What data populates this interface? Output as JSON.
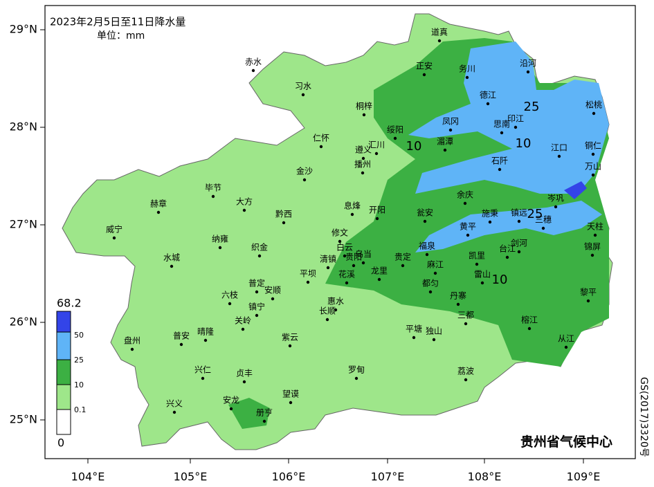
{
  "title": "2023年2月5日至11日降水量",
  "unit": "单位：mm",
  "lat_labels": [
    "29°N",
    "28°N",
    "27°N",
    "26°N",
    "25°N"
  ],
  "lon_labels": [
    "104°E",
    "105°E",
    "106°E",
    "107°E",
    "108°E",
    "109°E"
  ],
  "legend": {
    "max": "68.2",
    "levels": [
      "50",
      "25",
      "10",
      "0.1"
    ],
    "min": "0"
  },
  "contour_labels": [
    "10",
    "25",
    "10",
    "25",
    "10"
  ],
  "cities": [
    "道真",
    "赤水",
    "沿河",
    "正安",
    "务川",
    "习水",
    "德江",
    "桐梓",
    "松桃",
    "印江",
    "思南",
    "凤冈",
    "绥阳",
    "仁怀",
    "铜仁",
    "湄潭",
    "遵义",
    "汇川",
    "江口",
    "播州",
    "石阡",
    "万山",
    "金沙",
    "毕节",
    "余庆",
    "赫章",
    "大方",
    "岑巩",
    "息烽",
    "开阳",
    "瓮安",
    "施秉",
    "镇远",
    "三穗",
    "黔西",
    "天柱",
    "威宁",
    "黄平",
    "修文",
    "纳雍",
    "剑河",
    "白云",
    "锦屏",
    "织金",
    "乌当",
    "福泉",
    "台江",
    "水城",
    "清镇",
    "贵阳",
    "凯里",
    "贵定",
    "麻江",
    "花溪",
    "龙里",
    "平坝",
    "雷山",
    "普定",
    "都匀",
    "安顺",
    "六枝",
    "丹寨",
    "黎平",
    "惠水",
    "镇宁",
    "长顺",
    "三都",
    "关岭",
    "榕江",
    "平塘",
    "独山",
    "晴隆",
    "紫云",
    "从江",
    "普安",
    "盘州",
    "罗甸",
    "荔波",
    "兴仁",
    "贞丰",
    "望谟",
    "安龙",
    "兴义",
    "册亨"
  ],
  "credit": "贵州省气候中心",
  "approval": "GS(2017)3320号"
}
